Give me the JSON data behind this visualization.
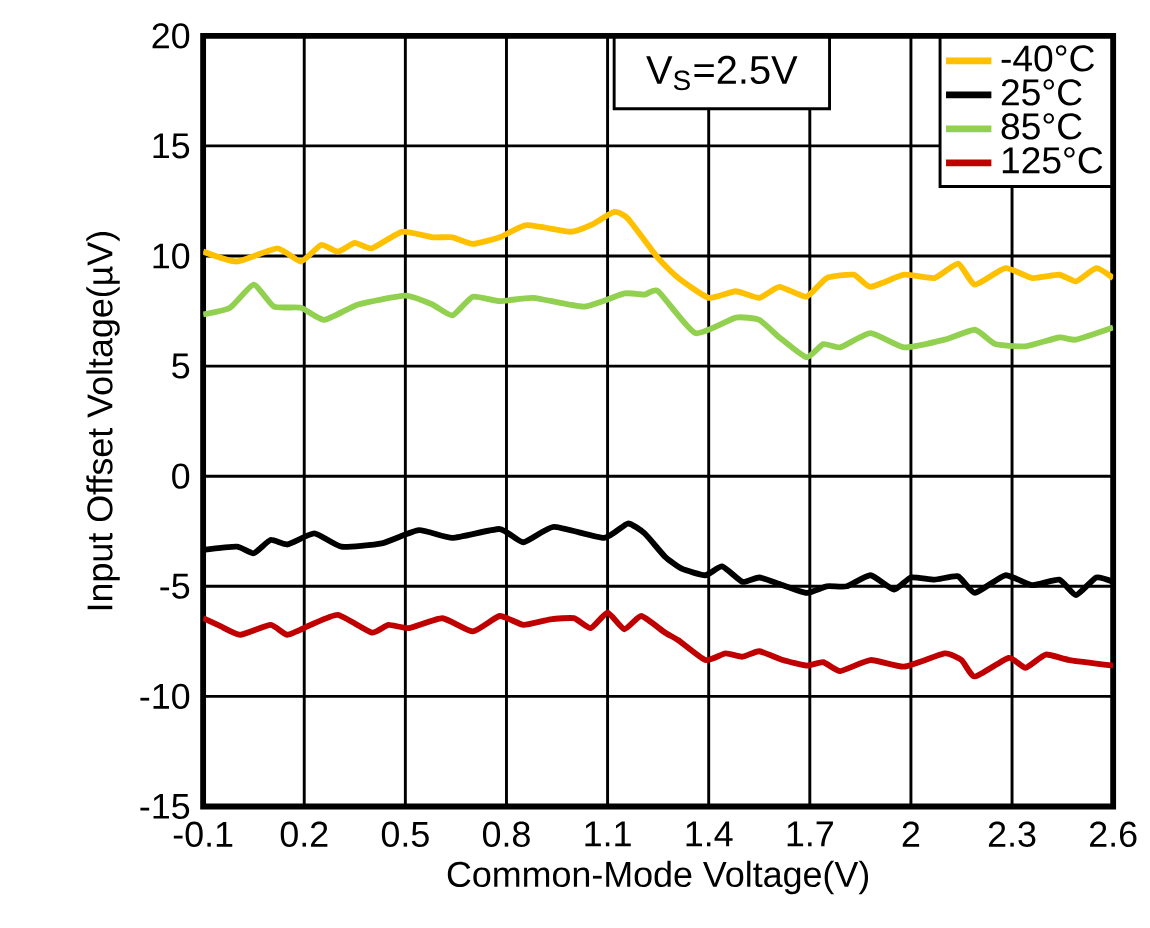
{
  "chart_data": {
    "type": "line",
    "xlabel": "Common-Mode Voltage(V)",
    "ylabel": "Input Offset Voltage(µV)",
    "annotations": [
      "V$_{S}$=2.5V"
    ],
    "xlim": [
      -0.1,
      2.6
    ],
    "ylim": [
      -15,
      20
    ],
    "xticks": [
      -0.1,
      0.2,
      0.5,
      0.8,
      1.1,
      1.4,
      1.7,
      2,
      2.3,
      2.6
    ],
    "yticks": [
      -15,
      -10,
      -5,
      0,
      5,
      10,
      15,
      20
    ],
    "grid": true,
    "legend": "top right",
    "marker": "none",
    "line_style": "solid",
    "series": [
      {
        "name": "-40°C",
        "color": "#ffc000",
        "x": [
          -0.1,
          0.0,
          0.12,
          0.19,
          0.25,
          0.3,
          0.35,
          0.4,
          0.49,
          0.58,
          0.64,
          0.7,
          0.78,
          0.86,
          0.99,
          1.05,
          1.12,
          1.16,
          1.25,
          1.31,
          1.4,
          1.48,
          1.55,
          1.61,
          1.69,
          1.75,
          1.83,
          1.88,
          1.98,
          2.07,
          2.14,
          2.19,
          2.28,
          2.36,
          2.44,
          2.49,
          2.55,
          2.6
        ],
        "values": [
          10.2,
          9.75,
          10.35,
          9.75,
          10.5,
          10.2,
          10.6,
          10.35,
          11.1,
          10.85,
          10.85,
          10.55,
          10.85,
          11.4,
          11.1,
          11.4,
          12.0,
          11.7,
          9.9,
          9.0,
          8.1,
          8.4,
          8.1,
          8.6,
          8.15,
          9.0,
          9.15,
          8.6,
          9.15,
          9.0,
          9.65,
          8.7,
          9.45,
          9.0,
          9.15,
          8.85,
          9.45,
          9.0
        ]
      },
      {
        "name": "25°C",
        "color": "#000000",
        "x": [
          -0.1,
          0.0,
          0.05,
          0.1,
          0.15,
          0.23,
          0.31,
          0.43,
          0.54,
          0.64,
          0.78,
          0.85,
          0.94,
          1.09,
          1.16,
          1.21,
          1.27,
          1.32,
          1.39,
          1.44,
          1.5,
          1.55,
          1.61,
          1.69,
          1.75,
          1.81,
          1.88,
          1.95,
          2.0,
          2.07,
          2.14,
          2.19,
          2.28,
          2.36,
          2.44,
          2.49,
          2.55,
          2.6
        ],
        "values": [
          -3.35,
          -3.2,
          -3.5,
          -2.9,
          -3.1,
          -2.6,
          -3.2,
          -3.05,
          -2.45,
          -2.8,
          -2.4,
          -3.0,
          -2.3,
          -2.8,
          -2.15,
          -2.6,
          -3.65,
          -4.2,
          -4.5,
          -4.1,
          -4.8,
          -4.6,
          -4.9,
          -5.3,
          -5.0,
          -5.0,
          -4.5,
          -5.15,
          -4.6,
          -4.7,
          -4.55,
          -5.3,
          -4.5,
          -4.95,
          -4.7,
          -5.4,
          -4.6,
          -4.8
        ]
      },
      {
        "name": "85°C",
        "color": "#92d050",
        "x": [
          -0.1,
          -0.02,
          0.05,
          0.11,
          0.19,
          0.26,
          0.36,
          0.5,
          0.58,
          0.64,
          0.7,
          0.78,
          0.88,
          1.03,
          1.15,
          1.21,
          1.25,
          1.36,
          1.48,
          1.55,
          1.61,
          1.69,
          1.74,
          1.79,
          1.88,
          1.98,
          2.1,
          2.19,
          2.25,
          2.34,
          2.44,
          2.49,
          2.6
        ],
        "values": [
          7.35,
          7.65,
          8.7,
          7.7,
          7.65,
          7.1,
          7.8,
          8.2,
          7.8,
          7.3,
          8.15,
          7.95,
          8.1,
          7.7,
          8.3,
          8.25,
          8.4,
          6.5,
          7.2,
          7.1,
          6.3,
          5.4,
          6.0,
          5.85,
          6.5,
          5.85,
          6.2,
          6.65,
          6.0,
          5.9,
          6.3,
          6.2,
          6.75
        ]
      },
      {
        "name": "125°C",
        "color": "#c00000",
        "x": [
          -0.1,
          -0.05,
          0.01,
          0.1,
          0.15,
          0.22,
          0.3,
          0.4,
          0.45,
          0.51,
          0.61,
          0.7,
          0.78,
          0.85,
          0.93,
          1.0,
          1.05,
          1.1,
          1.15,
          1.2,
          1.27,
          1.31,
          1.39,
          1.45,
          1.5,
          1.55,
          1.62,
          1.69,
          1.74,
          1.79,
          1.88,
          1.98,
          2.1,
          2.15,
          2.19,
          2.29,
          2.34,
          2.4,
          2.47,
          2.6
        ],
        "values": [
          -6.45,
          -6.8,
          -7.2,
          -6.75,
          -7.2,
          -6.75,
          -6.3,
          -7.1,
          -6.75,
          -6.9,
          -6.45,
          -7.05,
          -6.35,
          -6.75,
          -6.5,
          -6.45,
          -6.9,
          -6.2,
          -6.95,
          -6.35,
          -7.1,
          -7.45,
          -8.35,
          -8.05,
          -8.2,
          -7.95,
          -8.35,
          -8.6,
          -8.45,
          -8.85,
          -8.35,
          -8.65,
          -8.05,
          -8.35,
          -9.1,
          -8.25,
          -8.7,
          -8.1,
          -8.35,
          -8.6
        ]
      }
    ]
  }
}
